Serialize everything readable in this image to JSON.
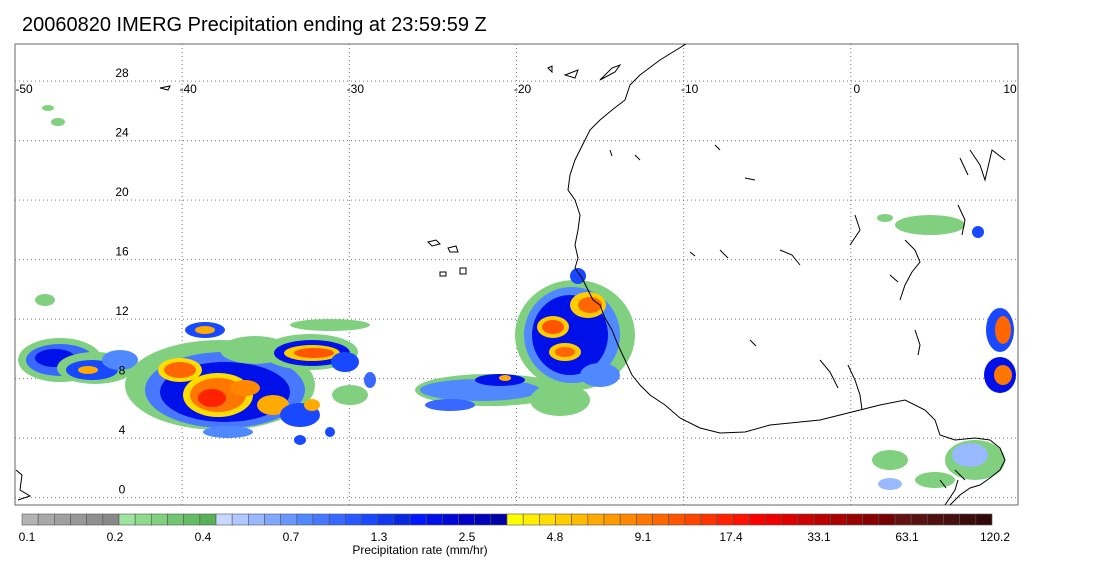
{
  "title": "20060820 IMERG Precipitation ending at 23:59:59 Z",
  "map": {
    "lon_labels": [
      "-50",
      "-40",
      "-30",
      "-20",
      "-10",
      "0",
      "10"
    ],
    "lon_values": [
      -50,
      -40,
      -30,
      -20,
      -10,
      0,
      10
    ],
    "lat_labels": [
      "28",
      "24",
      "20",
      "16",
      "12",
      "8",
      "4",
      "0"
    ],
    "lat_values": [
      28,
      24,
      20,
      16,
      12,
      8,
      4,
      0
    ],
    "lon_range": [
      -50,
      10
    ],
    "lat_range": [
      -0.5,
      30.5
    ],
    "gridlines": "dotted",
    "coastline_color": "#000000",
    "precip_regions": [
      {
        "name": "atlantic-itcz-west",
        "lon": -43,
        "lat": 8.5
      },
      {
        "name": "atlantic-itcz-central",
        "lon": -33,
        "lat": 9.5
      },
      {
        "name": "west-africa-coast-system",
        "lon": -17,
        "lat": 11.5
      },
      {
        "name": "africa-east-edge-system",
        "lon": 9.5,
        "lat": 9.5
      },
      {
        "name": "sahel-light-rain",
        "lon": 5,
        "lat": 18
      }
    ]
  },
  "colorbar": {
    "label": "Precipitation rate (mm/hr)",
    "tick_labels": [
      "0.1",
      "0.2",
      "0.4",
      "0.7",
      "1.3",
      "2.5",
      "4.8",
      "9.1",
      "17.4",
      "33.1",
      "63.1",
      "120.2"
    ],
    "colors": [
      "#b3b3b3",
      "#a8a8a8",
      "#a0a0a0",
      "#989898",
      "#909090",
      "#888888",
      "#9ee49e",
      "#8edb8e",
      "#80d080",
      "#72c672",
      "#64bc64",
      "#58b058",
      "#c8d8ff",
      "#b0c8ff",
      "#98b8ff",
      "#80a8ff",
      "#6898ff",
      "#5088ff",
      "#4878ff",
      "#3868ff",
      "#2858ff",
      "#1848ff",
      "#1038f0",
      "#0828e0",
      "#0018ff",
      "#0010e8",
      "#0008d8",
      "#0000c8",
      "#0000b8",
      "#0000a8",
      "#ffff00",
      "#ffee00",
      "#ffdd00",
      "#ffcc00",
      "#ffbb00",
      "#ffaa00",
      "#ff9900",
      "#ff8800",
      "#ff7700",
      "#ff6600",
      "#ff5500",
      "#ff4400",
      "#ff3300",
      "#ff2200",
      "#ff1100",
      "#ff0000",
      "#ee0000",
      "#dd0000",
      "#cc0000",
      "#bb0000",
      "#aa0000",
      "#990000",
      "#880000",
      "#770000",
      "#661111",
      "#5a1111",
      "#501010",
      "#461010",
      "#3c0c0c",
      "#320808"
    ]
  }
}
